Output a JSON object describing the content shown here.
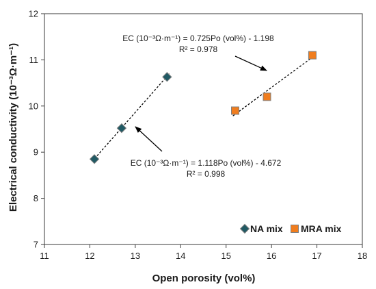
{
  "chart_data": {
    "type": "scatter",
    "xlabel": "Open porosity (vol%)",
    "ylabel": "Electrical conductivity  (10⁻³Ω·m⁻¹)",
    "xlim": [
      11,
      18
    ],
    "ylim": [
      7,
      12
    ],
    "xticks": [
      "11",
      "12",
      "13",
      "14",
      "15",
      "16",
      "17",
      "18"
    ],
    "yticks": [
      "7",
      "8",
      "9",
      "10",
      "11",
      "12"
    ],
    "grid": false,
    "legend_position": "bottom-right",
    "series": [
      {
        "name": "NA mix",
        "marker": "diamond",
        "color": "#215a64",
        "points": [
          {
            "x": 12.1,
            "y": 8.85
          },
          {
            "x": 12.7,
            "y": 9.52
          },
          {
            "x": 13.7,
            "y": 10.63
          }
        ],
        "trendline": {
          "slope": 1.118,
          "intercept": -4.672,
          "x_range": [
            12.05,
            13.75
          ]
        },
        "equation": "EC (10⁻³Ω·m⁻¹) = 1.118Po (vol%) - 4.672",
        "r2": "R² = 0.998"
      },
      {
        "name": "MRA mix",
        "marker": "square",
        "color": "#f07d1e",
        "points": [
          {
            "x": 15.2,
            "y": 9.9
          },
          {
            "x": 15.9,
            "y": 10.2
          },
          {
            "x": 16.9,
            "y": 11.1
          }
        ],
        "trendline": {
          "slope": 0.725,
          "intercept": -1.198,
          "x_range": [
            15.15,
            16.95
          ]
        },
        "equation": "EC (10⁻³Ω·m⁻¹) = 0.725Po (vol%) - 1.198",
        "r2": "R² = 0.978"
      }
    ]
  }
}
